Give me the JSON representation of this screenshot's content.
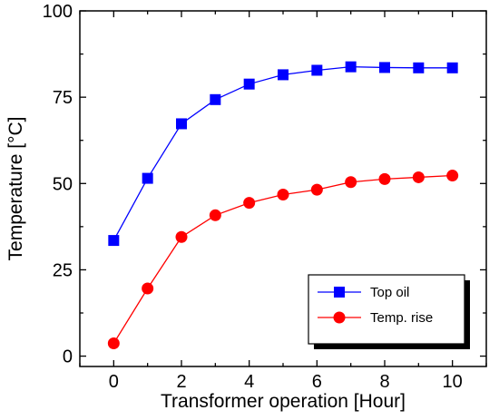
{
  "chart_data": {
    "type": "line",
    "xlabel": "Transformer operation [Hour]",
    "ylabel": "Temperature [°C]",
    "xlim": [
      -1,
      11
    ],
    "ylim": [
      -3,
      100
    ],
    "xticks": [
      0,
      2,
      4,
      6,
      8,
      10
    ],
    "yticks": [
      0,
      25,
      50,
      75,
      100
    ],
    "x": [
      0,
      1,
      2,
      3,
      4,
      5,
      6,
      7,
      8,
      9,
      10
    ],
    "series": [
      {
        "name": "Top oil",
        "color": "#0000ff",
        "marker": "square",
        "values": [
          33.5,
          51.5,
          67.3,
          74.3,
          78.8,
          81.5,
          82.8,
          83.8,
          83.6,
          83.5,
          83.5
        ]
      },
      {
        "name": "Temp. rise",
        "color": "#ff0000",
        "marker": "circle",
        "values": [
          3.7,
          19.6,
          34.5,
          40.8,
          44.4,
          46.8,
          48.2,
          50.4,
          51.3,
          51.8,
          52.3
        ]
      }
    ],
    "legend": "bottom-right",
    "grid": false
  }
}
